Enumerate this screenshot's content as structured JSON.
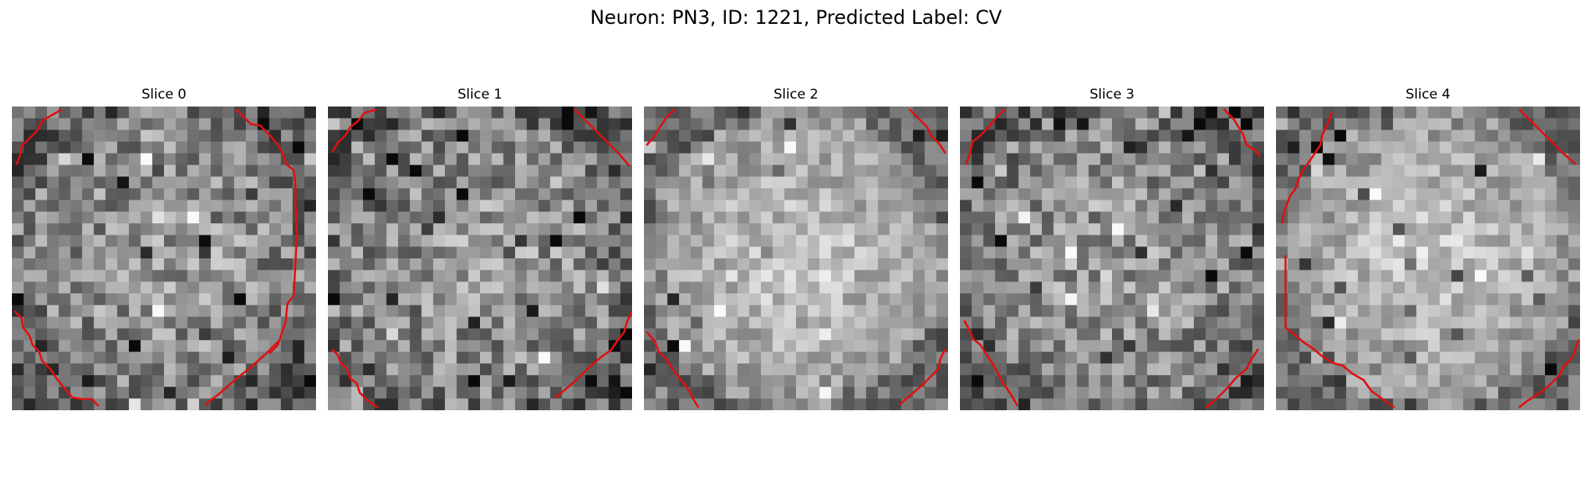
{
  "figure": {
    "title": "Neuron: PN3, ID: 1221, Predicted Label: CV"
  },
  "colors": {
    "contour": "#e01010",
    "background": "#ffffff"
  },
  "slices": [
    {
      "title": "Slice 0",
      "brightness": "medium",
      "contours": [
        "top-left",
        "right",
        "bottom-left",
        "bottom-right-diagonal"
      ]
    },
    {
      "title": "Slice 1",
      "brightness": "medium",
      "contours": [
        "top-left",
        "top-right",
        "bottom-left",
        "bottom-right"
      ]
    },
    {
      "title": "Slice 2",
      "brightness": "bright",
      "contours": [
        "top-left",
        "top-right",
        "bottom-left",
        "bottom-right"
      ]
    },
    {
      "title": "Slice 3",
      "brightness": "medium",
      "contours": [
        "top-left",
        "top-right",
        "bottom-left",
        "bottom-right"
      ]
    },
    {
      "title": "Slice 4",
      "brightness": "bright",
      "contours": [
        "top-left",
        "top-right",
        "left-bottom-arc",
        "bottom-right"
      ]
    }
  ]
}
